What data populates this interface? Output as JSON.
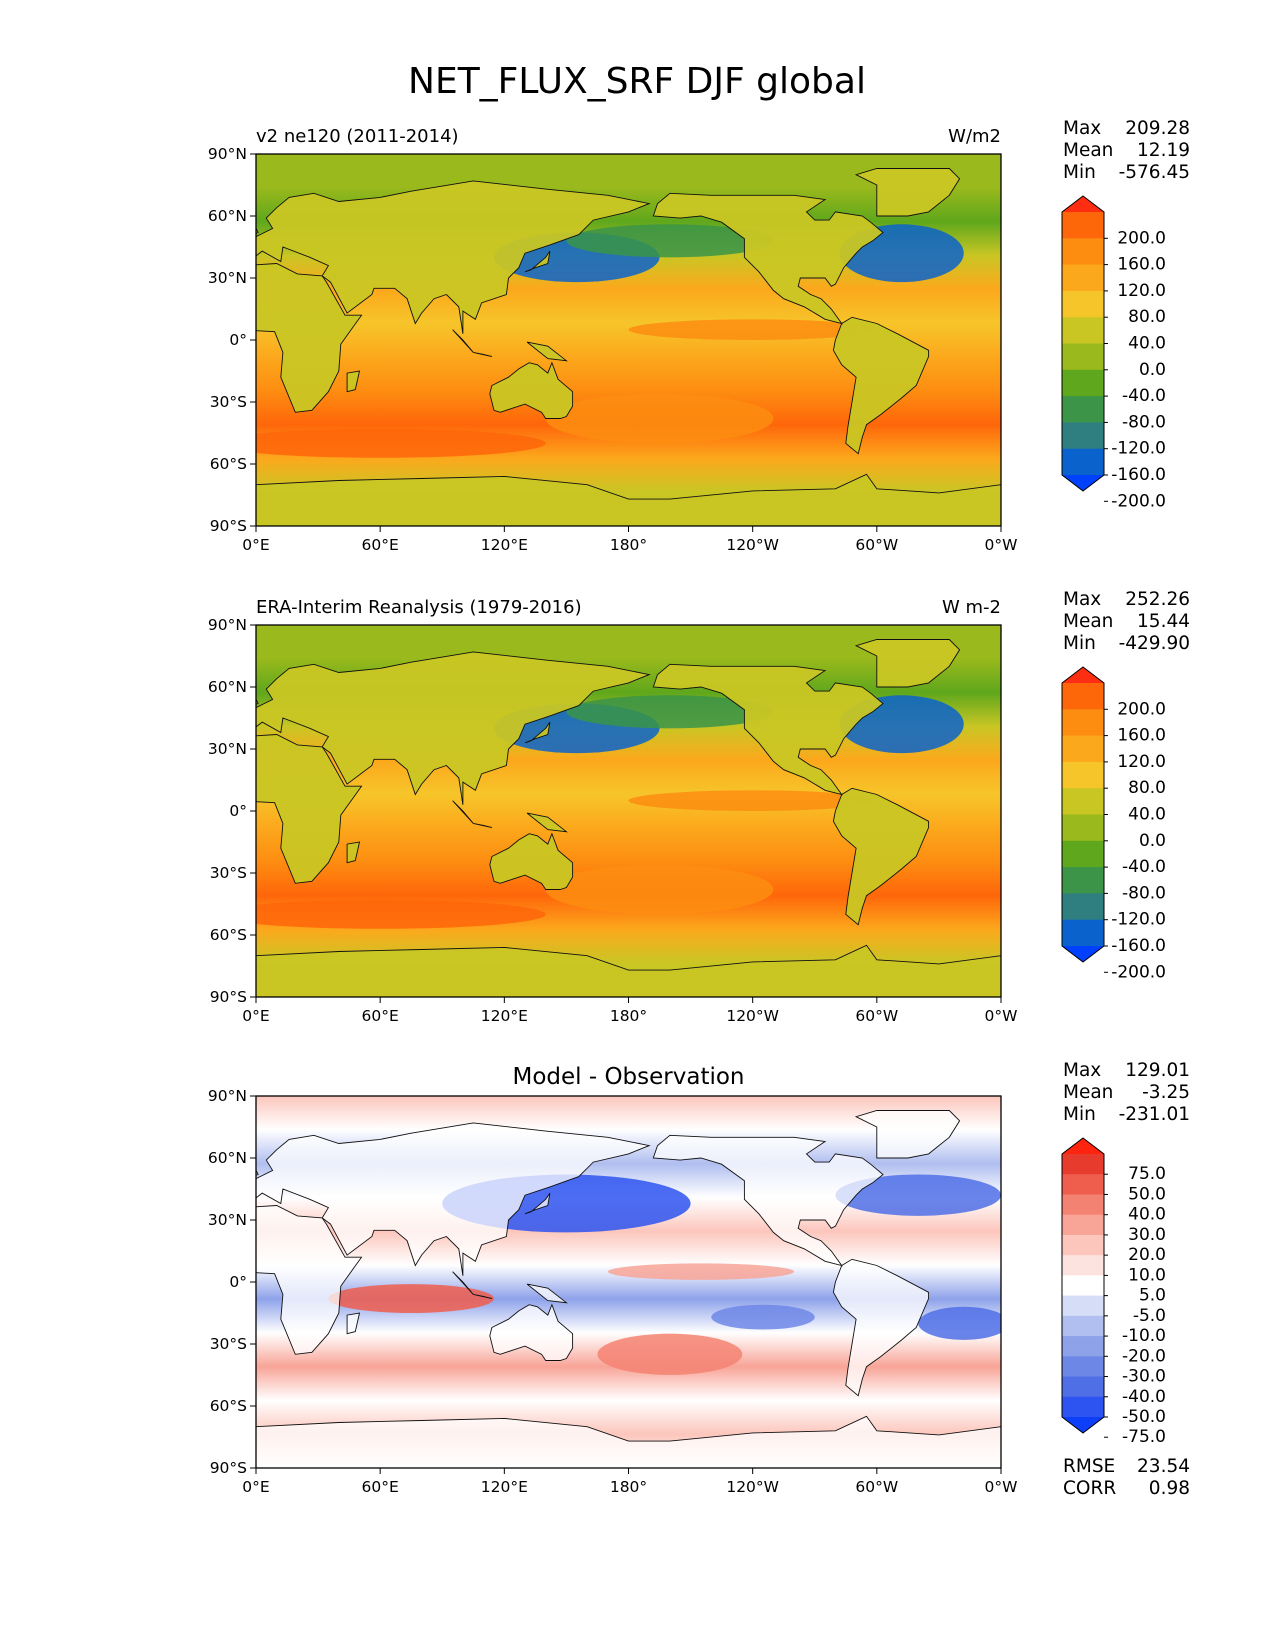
{
  "figure": {
    "title": "NET_FLUX_SRF DJF global"
  },
  "colors": {
    "main_levels": [
      "#0040ff",
      "#0a63cc",
      "#2f7f80",
      "#3b9448",
      "#5fa71c",
      "#99b91c",
      "#c9c624",
      "#f6c52a",
      "#fca81c",
      "#fd8d11",
      "#fe660a",
      "#ff2d12"
    ],
    "diff_levels": [
      "#0d3ff9",
      "#2d53f0",
      "#4f6fe6",
      "#6d87e6",
      "#8ea2ea",
      "#b0bef0",
      "#d6ddf6",
      "#ffffff",
      "#fde3df",
      "#fcc6bc",
      "#f8a497",
      "#f48272",
      "#ef5d4d",
      "#e73b2d",
      "#ff2410"
    ]
  },
  "chart_data": [
    {
      "type": "heatmap",
      "title": "",
      "left_label": "v2 ne120 (2011-2014)",
      "units": "W/m2",
      "xticks": [
        "0°E",
        "60°E",
        "120°E",
        "180°",
        "120°W",
        "60°W",
        "0°W"
      ],
      "yticks": [
        "90°N",
        "60°N",
        "30°N",
        "0°",
        "30°S",
        "60°S",
        "90°S"
      ],
      "xlim": [
        0,
        360
      ],
      "ylim": [
        -90,
        90
      ],
      "stats": [
        {
          "label": "Max",
          "value": "209.28"
        },
        {
          "label": "Mean",
          "value": "12.19"
        },
        {
          "label": "Min",
          "value": "-576.45"
        }
      ],
      "colorbar_ticks": [
        "200.0",
        "160.0",
        "120.0",
        "80.0",
        "40.0",
        "0.0",
        "-40.0",
        "-80.0",
        "-120.0",
        "-160.0",
        "-200.0"
      ],
      "footer": []
    },
    {
      "type": "heatmap",
      "title": "",
      "left_label": "ERA-Interim Reanalysis (1979-2016)",
      "units": "W m-2",
      "xticks": [
        "0°E",
        "60°E",
        "120°E",
        "180°",
        "120°W",
        "60°W",
        "0°W"
      ],
      "yticks": [
        "90°N",
        "60°N",
        "30°N",
        "0°",
        "30°S",
        "60°S",
        "90°S"
      ],
      "xlim": [
        0,
        360
      ],
      "ylim": [
        -90,
        90
      ],
      "stats": [
        {
          "label": "Max",
          "value": "252.26"
        },
        {
          "label": "Mean",
          "value": "15.44"
        },
        {
          "label": "Min",
          "value": "-429.90"
        }
      ],
      "colorbar_ticks": [
        "200.0",
        "160.0",
        "120.0",
        "80.0",
        "40.0",
        "0.0",
        "-40.0",
        "-80.0",
        "-120.0",
        "-160.0",
        "-200.0"
      ],
      "footer": []
    },
    {
      "type": "heatmap",
      "title": "Model - Observation",
      "left_label": "",
      "units": "",
      "xticks": [
        "0°E",
        "60°E",
        "120°E",
        "180°",
        "120°W",
        "60°W",
        "0°W"
      ],
      "yticks": [
        "90°N",
        "60°N",
        "30°N",
        "0°",
        "30°S",
        "60°S",
        "90°S"
      ],
      "xlim": [
        0,
        360
      ],
      "ylim": [
        -90,
        90
      ],
      "stats": [
        {
          "label": "Max",
          "value": "129.01"
        },
        {
          "label": "Mean",
          "value": "-3.25"
        },
        {
          "label": "Min",
          "value": "-231.01"
        }
      ],
      "colorbar_ticks": [
        "75.0",
        "50.0",
        "40.0",
        "30.0",
        "20.0",
        "10.0",
        "5.0",
        "-5.0",
        "-10.0",
        "-20.0",
        "-30.0",
        "-40.0",
        "-50.0",
        "-75.0"
      ],
      "footer": [
        {
          "label": "RMSE",
          "value": "23.54"
        },
        {
          "label": "CORR",
          "value": "0.98"
        }
      ]
    }
  ]
}
